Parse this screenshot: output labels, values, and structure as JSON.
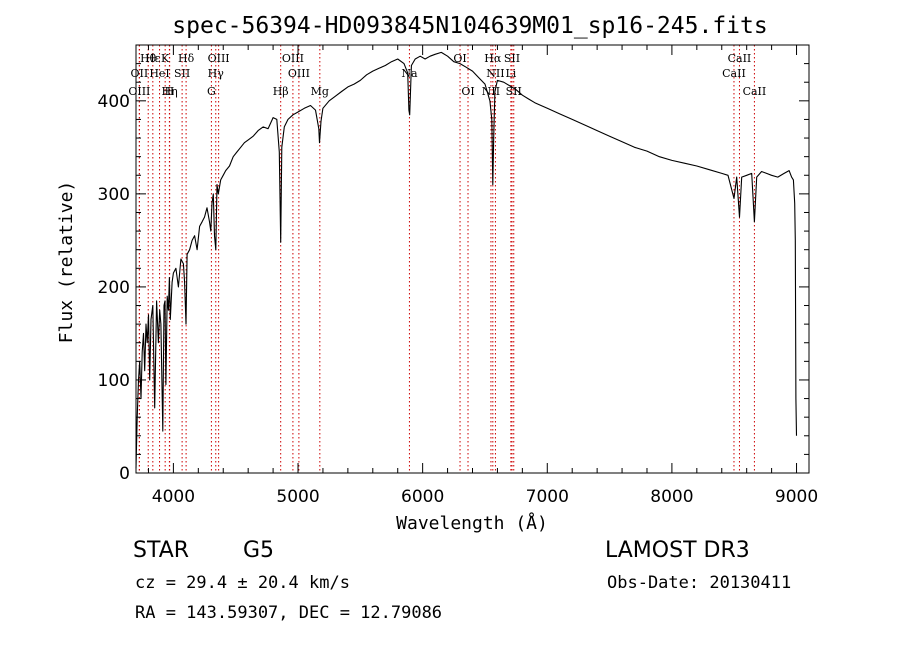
{
  "chart_data": {
    "type": "line",
    "title": "spec-56394-HD093845N104639M01_sp16-245.fits",
    "xlabel": "Wavelength (Å)",
    "ylabel": "Flux (relative)",
    "xlim": [
      3700,
      9100
    ],
    "ylim": [
      0,
      460
    ],
    "x_ticks": [
      4000,
      5000,
      6000,
      7000,
      8000,
      9000
    ],
    "y_ticks": [
      0,
      100,
      200,
      300,
      400
    ],
    "grid": false,
    "series": [
      {
        "name": "flux",
        "color": "#000000",
        "x": [
          3700,
          3710,
          3720,
          3730,
          3740,
          3750,
          3760,
          3770,
          3780,
          3790,
          3800,
          3810,
          3820,
          3835,
          3850,
          3865,
          3880,
          3890,
          3900,
          3915,
          3925,
          3933,
          3940,
          3950,
          3960,
          3968,
          3975,
          3990,
          4000,
          4020,
          4040,
          4060,
          4080,
          4090,
          4101,
          4110,
          4130,
          4150,
          4170,
          4190,
          4210,
          4230,
          4250,
          4270,
          4290,
          4300,
          4310,
          4320,
          4330,
          4340,
          4350,
          4360,
          4380,
          4400,
          4420,
          4450,
          4480,
          4510,
          4540,
          4570,
          4600,
          4640,
          4680,
          4720,
          4760,
          4800,
          4830,
          4850,
          4861,
          4870,
          4890,
          4920,
          4960,
          5000,
          5050,
          5100,
          5140,
          5167,
          5172,
          5184,
          5200,
          5250,
          5300,
          5350,
          5400,
          5450,
          5500,
          5550,
          5600,
          5650,
          5700,
          5750,
          5800,
          5850,
          5880,
          5890,
          5896,
          5910,
          5940,
          5980,
          6020,
          6060,
          6100,
          6150,
          6200,
          6250,
          6300,
          6350,
          6400,
          6450,
          6500,
          6540,
          6555,
          6563,
          6570,
          6580,
          6600,
          6650,
          6700,
          6750,
          6800,
          6850,
          6900,
          6950,
          7000,
          7100,
          7200,
          7300,
          7400,
          7500,
          7600,
          7700,
          7800,
          7900,
          8000,
          8100,
          8200,
          8300,
          8400,
          8450,
          8498,
          8520,
          8542,
          8560,
          8600,
          8640,
          8662,
          8680,
          8720,
          8760,
          8800,
          8850,
          8900,
          8940,
          8960,
          8975,
          8985,
          8990,
          8995,
          9000
        ],
        "y": [
          5,
          60,
          100,
          120,
          80,
          130,
          150,
          110,
          160,
          140,
          170,
          100,
          165,
          180,
          70,
          185,
          140,
          175,
          160,
          45,
          180,
          185,
          95,
          190,
          175,
          210,
          165,
          205,
          215,
          220,
          200,
          230,
          225,
          205,
          160,
          235,
          240,
          250,
          255,
          240,
          265,
          270,
          275,
          285,
          270,
          260,
          290,
          300,
          255,
          240,
          310,
          300,
          315,
          320,
          325,
          330,
          340,
          345,
          350,
          355,
          358,
          362,
          368,
          372,
          370,
          382,
          380,
          345,
          248,
          350,
          372,
          380,
          385,
          388,
          392,
          395,
          390,
          370,
          355,
          378,
          392,
          400,
          405,
          410,
          415,
          418,
          422,
          428,
          432,
          435,
          438,
          442,
          445,
          440,
          430,
          390,
          385,
          438,
          445,
          448,
          445,
          448,
          450,
          452,
          448,
          442,
          440,
          436,
          432,
          425,
          418,
          400,
          380,
          310,
          360,
          410,
          422,
          420,
          416,
          412,
          406,
          402,
          398,
          395,
          392,
          386,
          380,
          374,
          368,
          362,
          356,
          350,
          346,
          340,
          336,
          333,
          330,
          326,
          322,
          320,
          295,
          318,
          275,
          318,
          320,
          322,
          270,
          318,
          324,
          322,
          320,
          318,
          322,
          325,
          318,
          315,
          290,
          250,
          80,
          40
        ]
      }
    ],
    "lines": [
      {
        "name": "Hθ",
        "wavelength": 3798,
        "row": 1
      },
      {
        "name": "OII",
        "wavelength": 3727,
        "row": 2
      },
      {
        "name": "OIII",
        "wavelength": 3727,
        "row": 3
      },
      {
        "name": "Hε",
        "wavelength": 3835,
        "row": 1
      },
      {
        "name": "HeI",
        "wavelength": 3889,
        "row": 2
      },
      {
        "name": "Hη",
        "wavelength": 3970,
        "row": 3
      },
      {
        "name": "K",
        "wavelength": 3934,
        "row": 1
      },
      {
        "name": "SII",
        "wavelength": 4070,
        "row": 2
      },
      {
        "name": "H",
        "wavelength": 3968,
        "row": 3
      },
      {
        "name": "Hδ",
        "wavelength": 4102,
        "row": 1
      },
      {
        "name": "OIII",
        "wavelength": 4363,
        "row": 1
      },
      {
        "name": "Hγ",
        "wavelength": 4340,
        "row": 2
      },
      {
        "name": "G",
        "wavelength": 4305,
        "row": 3
      },
      {
        "name": "Hβ",
        "wavelength": 4861,
        "row": 3
      },
      {
        "name": "OIII",
        "wavelength": 4959,
        "row": 1
      },
      {
        "name": "OIII",
        "wavelength": 5007,
        "row": 2
      },
      {
        "name": "Mg",
        "wavelength": 5175,
        "row": 3
      },
      {
        "name": "Na",
        "wavelength": 5894,
        "row": 2
      },
      {
        "name": "OI",
        "wavelength": 6300,
        "row": 1
      },
      {
        "name": "OI",
        "wavelength": 6364,
        "row": 3
      },
      {
        "name": "Hα",
        "wavelength": 6563,
        "row": 1
      },
      {
        "name": "SII",
        "wavelength": 6717,
        "row": 1
      },
      {
        "name": "NII",
        "wavelength": 6584,
        "row": 2
      },
      {
        "name": "Li",
        "wavelength": 6708,
        "row": 2
      },
      {
        "name": "NII",
        "wavelength": 6548,
        "row": 3
      },
      {
        "name": "SII",
        "wavelength": 6731,
        "row": 3
      },
      {
        "name": "CaII",
        "wavelength": 8542,
        "row": 1
      },
      {
        "name": "CaII",
        "wavelength": 8498,
        "row": 2
      },
      {
        "name": "CaII",
        "wavelength": 8662,
        "row": 3
      }
    ],
    "line_color": "#cc0000"
  },
  "info": {
    "object_type": "STAR",
    "subclass": "G5",
    "survey": "LAMOST DR3",
    "cz": "cz = 29.4 ± 20.4 km/s",
    "obs_date": "Obs-Date: 20130411",
    "radec": "RA = 143.59307, DEC =  12.79086"
  }
}
